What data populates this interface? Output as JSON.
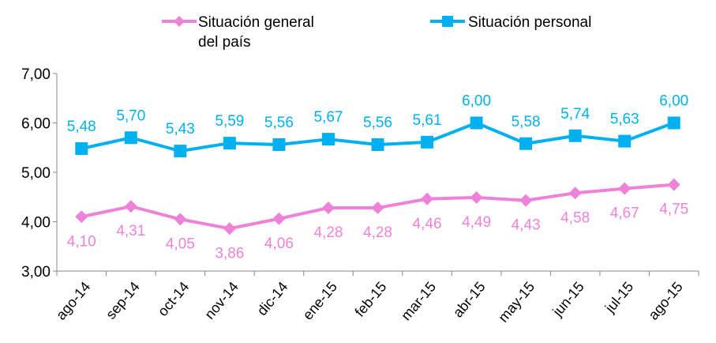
{
  "chart_data": {
    "type": "line",
    "categories": [
      "ago-14",
      "sep-14",
      "oct-14",
      "nov-14",
      "dic-14",
      "ene-15",
      "feb-15",
      "mar-15",
      "abr-15",
      "may-15",
      "jun-15",
      "jul-15",
      "ago-15"
    ],
    "series": [
      {
        "name": "Situación general del país",
        "legend_lines": [
          "Situación general",
          "del país"
        ],
        "color": "#EE82D8",
        "marker": "diamond",
        "values": [
          4.1,
          4.31,
          4.05,
          3.86,
          4.06,
          4.28,
          4.28,
          4.46,
          4.49,
          4.43,
          4.58,
          4.67,
          4.75
        ],
        "labels": [
          "4,10",
          "4,31",
          "4,05",
          "3,86",
          "4,06",
          "4,28",
          "4,28",
          "4,46",
          "4,49",
          "4,43",
          "4,58",
          "4,67",
          "4,75"
        ]
      },
      {
        "name": "Situación personal",
        "legend_lines": [
          "Situación personal"
        ],
        "color": "#00B0F0",
        "marker": "square",
        "values": [
          5.48,
          5.7,
          5.43,
          5.59,
          5.56,
          5.67,
          5.56,
          5.61,
          6.0,
          5.58,
          5.74,
          5.63,
          6.0
        ],
        "labels": [
          "5,48",
          "5,70",
          "5,43",
          "5,59",
          "5,56",
          "5,67",
          "5,56",
          "5,61",
          "6,00",
          "5,58",
          "5,74",
          "5,63",
          "6,00"
        ]
      }
    ],
    "ylim": [
      3,
      7
    ],
    "yticks": [
      3,
      4,
      5,
      6,
      7
    ],
    "ytick_labels": [
      "3,00",
      "4,00",
      "5,00",
      "6,00",
      "7,00"
    ],
    "grid": false,
    "legend_position": "top"
  }
}
